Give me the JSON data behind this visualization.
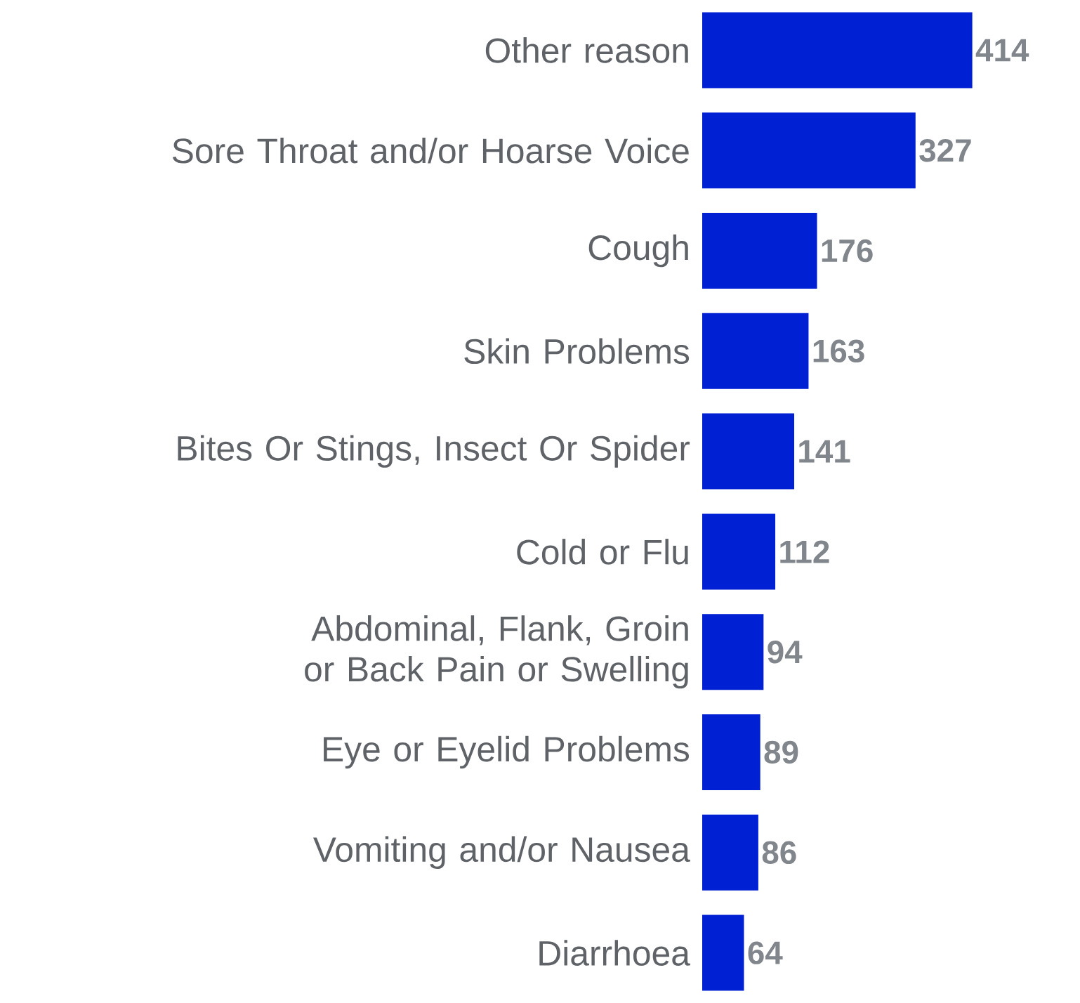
{
  "chart_data": {
    "type": "bar",
    "orientation": "horizontal",
    "color": "#0020d4",
    "data_labels": true,
    "categories": [
      "Other reason",
      "Sore Throat and/or Hoarse Voice",
      "Cough",
      "Skin Problems",
      "Bites Or Stings, Insect Or Spider",
      "Cold or Flu",
      "Abdominal, Flank, Groin or Back Pain or Swelling",
      "Eye or Eyelid Problems",
      "Vomiting and/or Nausea",
      "Diarrhoea"
    ],
    "values": [
      414,
      327,
      176,
      163,
      141,
      112,
      94,
      89,
      86,
      64
    ]
  }
}
